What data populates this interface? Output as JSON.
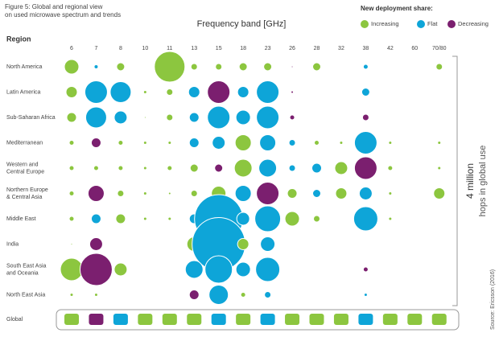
{
  "chart_data": {
    "type": "bubble-matrix",
    "title": "Figure 5: Global and regional view on used microwave spectrum and trends",
    "x_label": "Frequency band [GHz]",
    "y_label": "Region",
    "legend_title": "New deployment share:",
    "trends": [
      {
        "name": "Increasing",
        "color": "#8cc63f"
      },
      {
        "name": "Flat",
        "color": "#0ea5d8"
      },
      {
        "name": "Decreasing",
        "color": "#7b1f6f"
      }
    ],
    "categories": [
      "6",
      "7",
      "8",
      "10",
      "11",
      "13",
      "15",
      "18",
      "23",
      "26",
      "28",
      "32",
      "38",
      "42",
      "60",
      "70/80"
    ],
    "rows": [
      {
        "name": [
          "North America"
        ],
        "sizes": [
          18,
          5,
          10,
          null,
          38,
          8,
          8,
          10,
          10,
          2,
          10,
          null,
          6,
          null,
          null,
          8
        ],
        "trend": [
          0,
          1,
          0,
          null,
          0,
          0,
          0,
          0,
          0,
          2,
          0,
          null,
          1,
          null,
          null,
          0
        ]
      },
      {
        "name": [
          "Latin America"
        ],
        "sizes": [
          14,
          28,
          26,
          4,
          8,
          14,
          28,
          14,
          28,
          3,
          null,
          null,
          10,
          null,
          null,
          null
        ],
        "trend": [
          0,
          1,
          1,
          0,
          0,
          1,
          2,
          1,
          1,
          2,
          null,
          null,
          1,
          null,
          null,
          null
        ]
      },
      {
        "name": [
          "Sub-Saharan Africa"
        ],
        "sizes": [
          12,
          26,
          16,
          2,
          8,
          12,
          28,
          18,
          28,
          6,
          null,
          null,
          8,
          null,
          null,
          null
        ],
        "trend": [
          0,
          1,
          1,
          0,
          0,
          1,
          1,
          1,
          1,
          2,
          null,
          null,
          2,
          null,
          null,
          null
        ]
      },
      {
        "name": [
          "Mediterranean"
        ],
        "sizes": [
          6,
          12,
          6,
          4,
          4,
          12,
          16,
          20,
          20,
          8,
          6,
          4,
          28,
          4,
          null,
          4
        ],
        "trend": [
          0,
          2,
          0,
          0,
          0,
          1,
          1,
          0,
          1,
          1,
          0,
          0,
          1,
          0,
          null,
          0
        ]
      },
      {
        "name": [
          "Western and",
          "Central Europe"
        ],
        "sizes": [
          6,
          6,
          6,
          4,
          6,
          10,
          10,
          22,
          22,
          8,
          12,
          16,
          28,
          6,
          null,
          4
        ],
        "trend": [
          0,
          0,
          0,
          0,
          0,
          0,
          2,
          0,
          1,
          1,
          1,
          0,
          2,
          0,
          null,
          0
        ]
      },
      {
        "name": [
          "Northern Europe",
          "& Central Asia"
        ],
        "sizes": [
          6,
          20,
          8,
          4,
          3,
          8,
          18,
          20,
          28,
          12,
          10,
          14,
          16,
          4,
          null,
          14
        ],
        "trend": [
          0,
          2,
          0,
          0,
          0,
          0,
          0,
          1,
          2,
          0,
          1,
          0,
          1,
          0,
          null,
          0
        ]
      },
      {
        "name": [
          "Middle East"
        ],
        "sizes": [
          6,
          12,
          12,
          4,
          4,
          12,
          60,
          16,
          32,
          18,
          8,
          null,
          30,
          4,
          null,
          null
        ],
        "trend": [
          0,
          1,
          0,
          0,
          0,
          1,
          1,
          1,
          1,
          0,
          0,
          null,
          1,
          0,
          null,
          null
        ]
      },
      {
        "name": [
          "India"
        ],
        "sizes": [
          2,
          16,
          null,
          null,
          null,
          18,
          66,
          14,
          18,
          null,
          null,
          null,
          null,
          null,
          null,
          null
        ],
        "trend": [
          0,
          2,
          null,
          null,
          null,
          0,
          1,
          0,
          1,
          null,
          null,
          null,
          null,
          null,
          null,
          null
        ]
      },
      {
        "name": [
          "South East Asia",
          "and Oceania"
        ],
        "sizes": [
          28,
          40,
          16,
          null,
          null,
          22,
          34,
          18,
          30,
          null,
          null,
          null,
          6,
          null,
          null,
          null
        ],
        "trend": [
          0,
          2,
          0,
          null,
          null,
          1,
          1,
          1,
          1,
          null,
          null,
          null,
          2,
          null,
          null,
          null
        ]
      },
      {
        "name": [
          "North East Asia"
        ],
        "sizes": [
          4,
          4,
          null,
          null,
          null,
          12,
          24,
          6,
          8,
          null,
          null,
          null,
          4,
          null,
          null,
          null
        ],
        "trend": [
          0,
          0,
          null,
          null,
          null,
          2,
          1,
          0,
          1,
          null,
          null,
          null,
          1,
          null,
          null,
          null
        ]
      }
    ],
    "global": {
      "name": "Global",
      "trend": [
        0,
        2,
        1,
        0,
        0,
        0,
        1,
        0,
        1,
        0,
        0,
        0,
        1,
        0,
        0,
        0
      ]
    },
    "total": "4 million",
    "total_label": "hops in global use",
    "source": "Source: Ericsson (2016)"
  }
}
